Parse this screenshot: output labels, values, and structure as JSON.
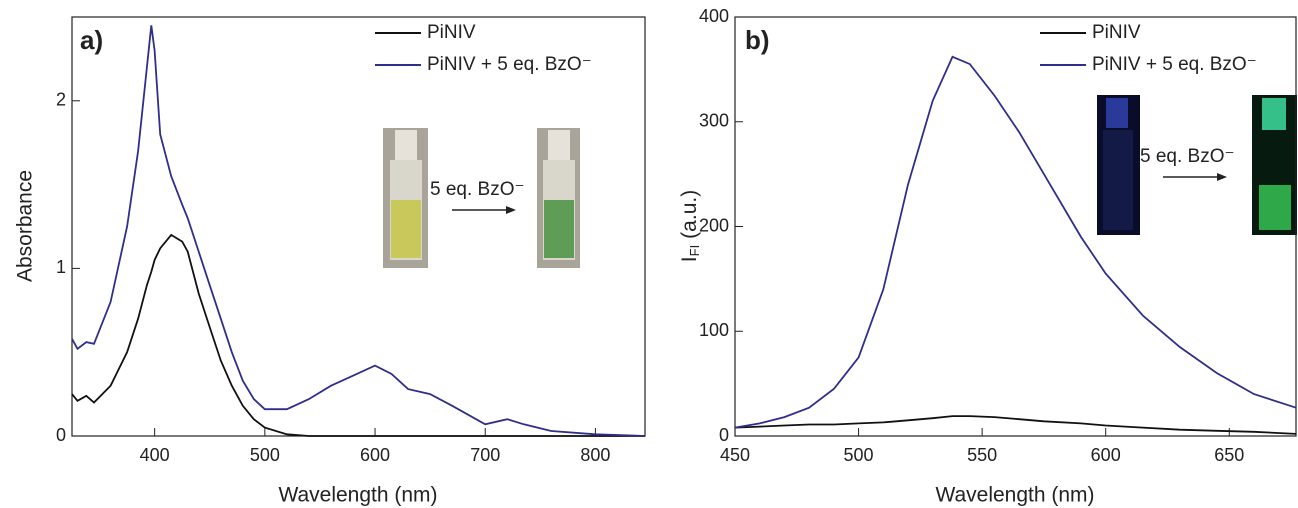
{
  "chart_data": [
    {
      "type": "line",
      "panel_label": "a)",
      "x_label": "Wavelength (nm)",
      "y_label": "Absorbance",
      "annotation": "5 eq. BzO⁻",
      "x": [
        325,
        330,
        338,
        345,
        360,
        375,
        385,
        393,
        397,
        400,
        405,
        415,
        425,
        430,
        440,
        450,
        460,
        470,
        480,
        490,
        500,
        520,
        540,
        560,
        580,
        600,
        615,
        630,
        650,
        670,
        700,
        720,
        735,
        760,
        800,
        845
      ],
      "series": [
        {
          "name": "PiNIV",
          "color": "#111111",
          "values": [
            0.25,
            0.21,
            0.24,
            0.2,
            0.3,
            0.5,
            0.7,
            0.9,
            0.98,
            1.05,
            1.12,
            1.2,
            1.16,
            1.1,
            0.85,
            0.65,
            0.45,
            0.3,
            0.18,
            0.1,
            0.05,
            0.01,
            0,
            0,
            0,
            0,
            0,
            0,
            0,
            0,
            0,
            0,
            0,
            0,
            0,
            0
          ]
        },
        {
          "name": "PiNIV + 5 eq. BzO⁻",
          "color": "#2e2e8c",
          "values": [
            0.58,
            0.52,
            0.56,
            0.55,
            0.8,
            1.25,
            1.7,
            2.2,
            2.45,
            2.3,
            1.8,
            1.55,
            1.38,
            1.3,
            1.1,
            0.9,
            0.7,
            0.5,
            0.33,
            0.22,
            0.16,
            0.16,
            0.22,
            0.3,
            0.36,
            0.42,
            0.37,
            0.28,
            0.25,
            0.18,
            0.07,
            0.1,
            0.07,
            0.03,
            0.01,
            0
          ]
        }
      ],
      "xlim": [
        325,
        845
      ],
      "xticks": [
        400,
        500,
        600,
        700,
        800
      ],
      "ylim": [
        0,
        2.5
      ],
      "yticks": [
        0,
        1,
        2
      ]
    },
    {
      "type": "line",
      "panel_label": "b)",
      "x_label": "Wavelength (nm)",
      "y_label": "I",
      "y_label_subscript": "FI",
      "y_label_unit": "(a.u.)",
      "annotation": "5 eq. BzO⁻",
      "x": [
        450,
        460,
        470,
        480,
        490,
        500,
        510,
        520,
        530,
        538,
        545,
        555,
        565,
        575,
        590,
        600,
        615,
        630,
        645,
        660,
        677
      ],
      "series": [
        {
          "name": "PiNIV",
          "color": "#111111",
          "values": [
            8,
            9,
            10,
            11,
            11,
            12,
            13,
            15,
            17,
            19,
            19,
            18,
            16,
            14,
            12,
            10,
            8,
            6,
            5,
            4,
            2
          ]
        },
        {
          "name": "PiNIV + 5 eq. BzO⁻",
          "color": "#2e2e8c",
          "values": [
            8,
            12,
            18,
            27,
            45,
            75,
            140,
            240,
            320,
            362,
            355,
            325,
            290,
            250,
            190,
            155,
            115,
            85,
            60,
            40,
            27
          ]
        }
      ],
      "xlim": [
        450,
        677
      ],
      "xticks": [
        450,
        500,
        550,
        600,
        650
      ],
      "ylim": [
        0,
        400
      ],
      "yticks": [
        0,
        100,
        200,
        300,
        400
      ]
    }
  ]
}
